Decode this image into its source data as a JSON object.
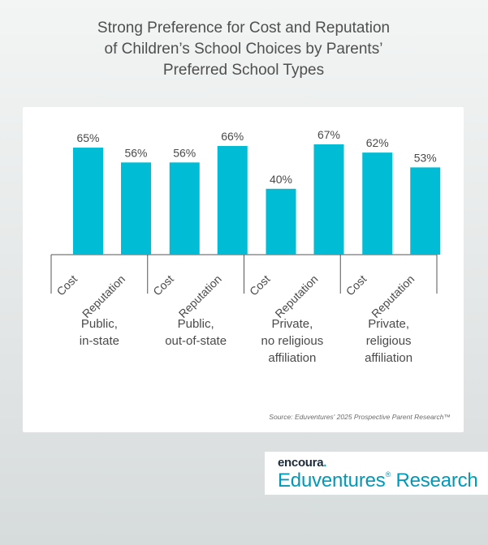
{
  "title": {
    "lines": [
      "Strong Preference for Cost and Reputation",
      "of Children’s School Choices by Parents’",
      "Preferred School Types"
    ]
  },
  "source": "Source: Eduventures' 2025 Prospective Parent Research™",
  "logo": {
    "encoura": "encoura",
    "encoura_dot": ".",
    "main": "Eduventures",
    "reg": "®",
    "sub": " Research"
  },
  "colors": {
    "bar": "#00bcd4",
    "axis": "#555555",
    "text": "#4a4a4a"
  },
  "chart_data": {
    "type": "bar",
    "categories": [
      "Cost",
      "Reputation",
      "Cost",
      "Reputation",
      "Cost",
      "Reputation",
      "Cost",
      "Reputation"
    ],
    "values": [
      65,
      56,
      56,
      66,
      40,
      67,
      62,
      53
    ],
    "data_labels": [
      "65%",
      "56%",
      "56%",
      "66%",
      "40%",
      "67%",
      "62%",
      "53%"
    ],
    "groups": [
      {
        "label_lines": [
          "Public,",
          "in-state"
        ],
        "bars": [
          0,
          1
        ]
      },
      {
        "label_lines": [
          "Public,",
          "out-of-state"
        ],
        "bars": [
          2,
          3
        ]
      },
      {
        "label_lines": [
          "Private,",
          "no religious",
          "affiliation"
        ],
        "bars": [
          4,
          5
        ]
      },
      {
        "label_lines": [
          "Private,",
          "religious",
          "affiliation"
        ],
        "bars": [
          6,
          7
        ]
      }
    ],
    "ylim": [
      0,
      100
    ],
    "grid": false,
    "legend": "none"
  }
}
